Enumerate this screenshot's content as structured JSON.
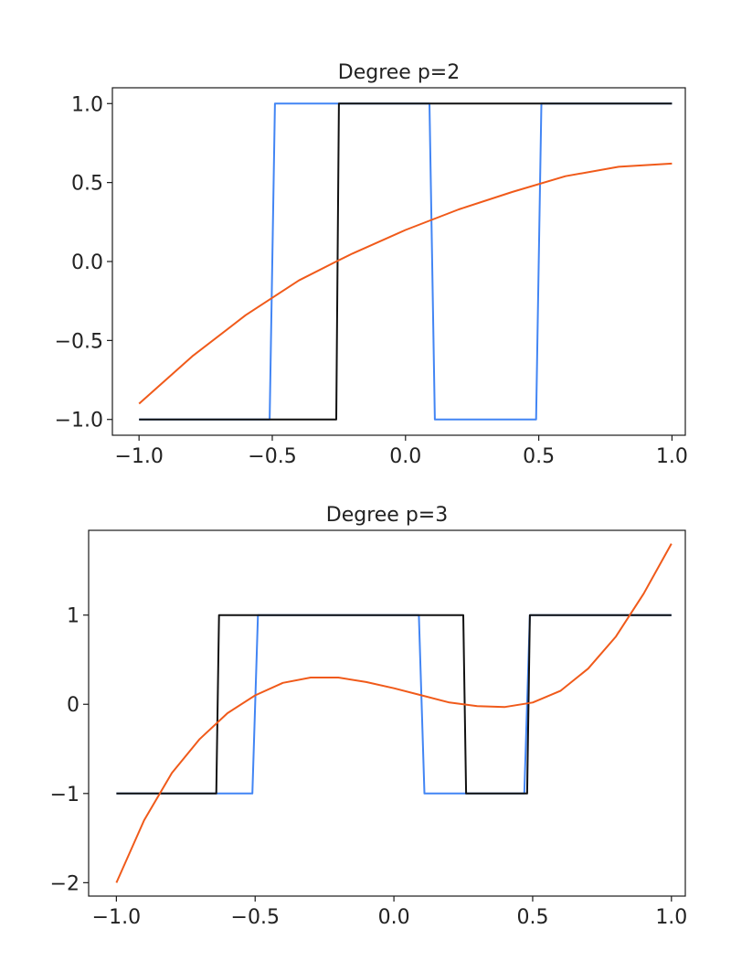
{
  "chart_data": [
    {
      "type": "line",
      "title": "Degree p=2",
      "xlabel": "",
      "ylabel": "",
      "xlim": [
        -1.1,
        1.05
      ],
      "ylim": [
        -1.1,
        1.1
      ],
      "xticks": [
        -1.0,
        -0.5,
        0.0,
        0.5,
        1.0
      ],
      "xtick_labels": [
        "−1.0",
        "−0.5",
        "0.0",
        "0.5",
        "1.0"
      ],
      "yticks": [
        -1.0,
        -0.5,
        0.0,
        0.5,
        1.0
      ],
      "ytick_labels": [
        "−1.0",
        "−0.5",
        "0.0",
        "0.5",
        "1.0"
      ],
      "grid": false,
      "series": [
        {
          "color": "#4285f4",
          "x": [
            -1.0,
            -0.51,
            -0.49,
            0.09,
            0.11,
            0.49,
            0.51,
            1.0
          ],
          "y": [
            -1,
            -1,
            1,
            1,
            -1,
            -1,
            1,
            1
          ]
        },
        {
          "color": "#111111",
          "x": [
            -1.0,
            -0.26,
            -0.25,
            1.0
          ],
          "y": [
            -1,
            -1,
            1,
            1
          ]
        },
        {
          "color": "#f05a1a",
          "x": [
            -1.0,
            -0.8,
            -0.6,
            -0.4,
            -0.26,
            -0.2,
            0.0,
            0.2,
            0.4,
            0.6,
            0.8,
            1.0
          ],
          "y": [
            -0.9,
            -0.6,
            -0.34,
            -0.12,
            0.0,
            0.05,
            0.2,
            0.33,
            0.44,
            0.54,
            0.6,
            0.62
          ]
        }
      ]
    },
    {
      "type": "line",
      "title": "Degree p=3",
      "xlabel": "",
      "ylabel": "",
      "xlim": [
        -1.1,
        1.05
      ],
      "ylim": [
        -2.15,
        1.95
      ],
      "xticks": [
        -1.0,
        -0.5,
        0.0,
        0.5,
        1.0
      ],
      "xtick_labels": [
        "−1.0",
        "−0.5",
        "0.0",
        "0.5",
        "1.0"
      ],
      "yticks": [
        -2,
        -1,
        0,
        1
      ],
      "ytick_labels": [
        "−2",
        "−1",
        "0",
        "1"
      ],
      "grid": false,
      "series": [
        {
          "color": "#4285f4",
          "x": [
            -1.0,
            -0.51,
            -0.49,
            0.09,
            0.11,
            0.47,
            0.49,
            1.0
          ],
          "y": [
            -1,
            -1,
            1,
            1,
            -1,
            -1,
            1,
            1
          ]
        },
        {
          "color": "#111111",
          "x": [
            -1.0,
            -0.64,
            -0.63,
            0.25,
            0.26,
            0.48,
            0.49,
            1.0
          ],
          "y": [
            -1,
            -1,
            1,
            1,
            -1,
            -1,
            1,
            1
          ]
        },
        {
          "color": "#f05a1a",
          "x": [
            -1.0,
            -0.9,
            -0.8,
            -0.7,
            -0.6,
            -0.5,
            -0.4,
            -0.3,
            -0.2,
            -0.1,
            0.0,
            0.1,
            0.2,
            0.3,
            0.4,
            0.5,
            0.6,
            0.7,
            0.8,
            0.9,
            1.0
          ],
          "y": [
            -2.0,
            -1.3,
            -0.77,
            -0.39,
            -0.1,
            0.1,
            0.24,
            0.3,
            0.3,
            0.25,
            0.18,
            0.1,
            0.02,
            -0.02,
            -0.03,
            0.02,
            0.15,
            0.4,
            0.76,
            1.24,
            1.8
          ]
        }
      ]
    }
  ]
}
